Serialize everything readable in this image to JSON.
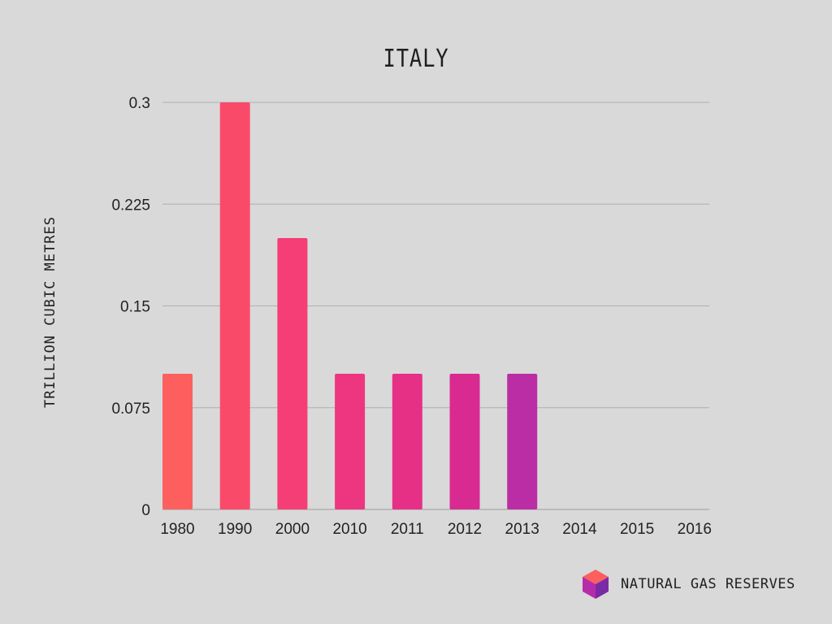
{
  "chart_data": {
    "type": "bar",
    "title": "ITALY",
    "xlabel": "",
    "ylabel": "TRILLION CUBIC METRES",
    "categories": [
      "1980",
      "1990",
      "2000",
      "2010",
      "2011",
      "2012",
      "2013",
      "2014",
      "2015",
      "2016"
    ],
    "values": [
      0.1,
      0.3,
      0.2,
      0.1,
      0.1,
      0.1,
      0.1,
      0,
      0,
      0
    ],
    "ylim": [
      0,
      0.3
    ],
    "yticks": [
      "0",
      "0.075",
      "0.15",
      "0.225",
      "0.3"
    ],
    "ytick_values": [
      0,
      0.075,
      0.15,
      0.225,
      0.3
    ],
    "grid": true,
    "bar_colors": [
      "#fd5f5f",
      "#fa4a6a",
      "#f53e75",
      "#ee357f",
      "#e63086",
      "#d92a92",
      "#bb2da4",
      "#b52ca8",
      "#b02baa",
      "#a92aad"
    ]
  },
  "brand": {
    "label": "NATURAL GAS RESERVES",
    "colors": [
      "#fd5f5f",
      "#b52ca8",
      "#7a2aa5"
    ]
  }
}
